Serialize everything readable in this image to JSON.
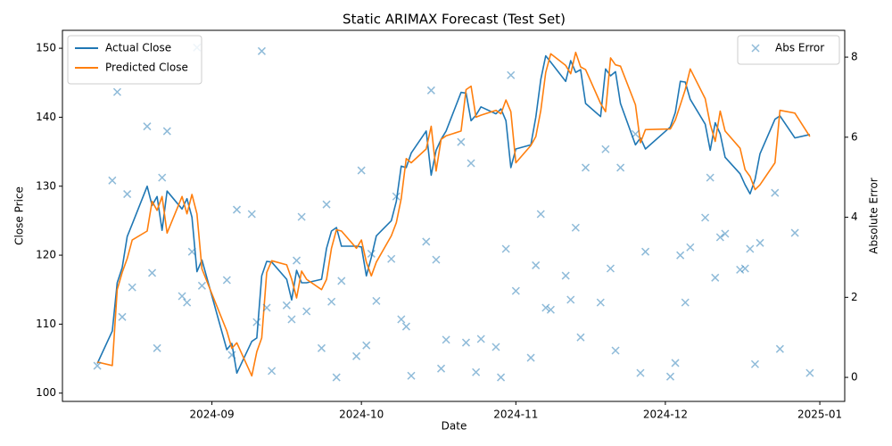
{
  "chart_data": {
    "type": "line",
    "title": "Static ARIMAX Forecast (Test Set)",
    "xlabel": "Date",
    "ylabel": "Close Price",
    "y2label": "Absolute Error",
    "x": [
      222,
      225,
      226,
      227,
      228,
      229,
      232,
      233,
      234,
      235,
      236,
      239,
      240,
      241,
      242,
      243,
      248,
      249,
      250,
      253,
      254,
      255,
      256,
      257,
      260,
      261,
      262,
      263,
      264,
      267,
      268,
      269,
      270,
      271,
      274,
      275,
      276,
      277,
      278,
      281,
      282,
      283,
      284,
      285,
      288,
      289,
      290,
      291,
      292,
      295,
      296,
      297,
      298,
      299,
      302,
      303,
      304,
      305,
      306,
      309,
      310,
      311,
      312,
      313,
      316,
      317,
      318,
      319,
      320,
      323,
      324,
      325,
      326,
      327,
      330,
      331,
      332,
      337,
      338,
      339,
      340,
      341,
      344,
      345,
      346,
      347,
      348,
      351,
      352,
      353,
      354,
      355,
      358,
      359,
      362,
      365
    ],
    "series": [
      {
        "name": "Actual Close",
        "color": "#1f77b4",
        "values": [
          104.3,
          109,
          116,
          118.2,
          122.7,
          124.5,
          130,
          127.2,
          128.5,
          123.6,
          129.3,
          126.7,
          128.2,
          125.5,
          117.6,
          119.3,
          106.3,
          107.2,
          102.9,
          107.5,
          108,
          117,
          119.1,
          119,
          116.5,
          113.5,
          117.8,
          116,
          116,
          116.5,
          121,
          123.5,
          124,
          121.3,
          121.3,
          121.2,
          117,
          119.7,
          122.8,
          125,
          127.8,
          132.9,
          132.7,
          134.8,
          138,
          131.6,
          135.2,
          136.8,
          138,
          143.6,
          143.5,
          139.5,
          140.3,
          141.5,
          140.5,
          141.2,
          139.5,
          132.7,
          135.4,
          136,
          140,
          145.5,
          148.9,
          148,
          145.2,
          148.2,
          146.5,
          146.9,
          142,
          140.1,
          147,
          146,
          146.6,
          142,
          136,
          137,
          135.4,
          138.6,
          140.7,
          145.2,
          145.1,
          142.6,
          139,
          135.2,
          139.2,
          137.6,
          134.2,
          131.8,
          130.2,
          128.9,
          131,
          134.7,
          139.7,
          140.2,
          137,
          137.5
        ]
      },
      {
        "name": "Predicted Close",
        "color": "#ff7f0e",
        "values": [
          104.5,
          104,
          115,
          117.5,
          119.5,
          122.2,
          123.5,
          127.8,
          126.5,
          128.5,
          123.2,
          128.5,
          126,
          128.8,
          126,
          118,
          109,
          106.5,
          107.3,
          102.5,
          106,
          108,
          117.5,
          119.2,
          118.6,
          116.5,
          113.8,
          117.7,
          116.5,
          115,
          116.5,
          121,
          123.7,
          123.5,
          121,
          122.2,
          119,
          117,
          119,
          122.8,
          124.7,
          128.2,
          134,
          133.4,
          135.4,
          138.7,
          132.2,
          136.8,
          137.3,
          138,
          144,
          144.5,
          140,
          140.3,
          141,
          140.5,
          142.5,
          140.8,
          133.4,
          135.9,
          137.2,
          141,
          146.5,
          149.2,
          147.5,
          146.3,
          149.4,
          147.3,
          146.9,
          142,
          140.8,
          148.6,
          147.6,
          147.4,
          141.8,
          136.3,
          138.2,
          138.3,
          139.6,
          141.8,
          144,
          147,
          142.7,
          139,
          136.5,
          140.9,
          138,
          135.5,
          132.4,
          131.4,
          129.5,
          130.2,
          133.4,
          141,
          140.6,
          137.2
        ]
      },
      {
        "name": "Abs Error",
        "type": "scatter",
        "marker": "x",
        "axis": "y2",
        "color": "#1f77b4",
        "opacity": 0.5,
        "values": [
          0.29,
          4.92,
          7.13,
          1.51,
          4.58,
          2.25,
          6.27,
          2.61,
          0.73,
          4.99,
          6.15,
          2.03,
          1.87,
          3.14,
          8.24,
          2.29,
          2.43,
          0.56,
          4.19,
          4.08,
          1.38,
          8.15,
          1.74,
          0.16,
          1.8,
          1.45,
          2.92,
          4.01,
          1.65,
          0.73,
          4.32,
          1.89,
          0,
          2.41,
          0.53,
          5.17,
          0.8,
          3.09,
          1.91,
          2.96,
          4.52,
          1.45,
          1.27,
          0.04,
          3.39,
          7.17,
          2.94,
          0.22,
          0.94,
          5.88,
          0.87,
          5.35,
          0.13,
          0.96,
          0.76,
          0,
          3.21,
          7.55,
          2.16,
          0.49,
          2.8,
          4.08,
          1.74,
          1.69,
          2.54,
          1.94,
          3.74,
          1,
          5.24,
          1.87,
          5.7,
          2.72,
          0.67,
          5.24,
          6.08,
          0.11,
          3.14,
          0.02,
          0.36,
          3.05,
          1.87,
          3.25,
          3.99,
          4.99,
          2.49,
          3.5,
          3.59,
          2.69,
          2.72,
          3.21,
          0.33,
          3.36,
          4.61,
          0.71,
          3.61,
          0.11
        ]
      }
    ],
    "xlim": [
      215,
      372
    ],
    "xticks": [
      {
        "value": 245,
        "label": "2024-09"
      },
      {
        "value": 275,
        "label": "2024-10"
      },
      {
        "value": 306,
        "label": "2024-11"
      },
      {
        "value": 336,
        "label": "2024-12"
      },
      {
        "value": 367,
        "label": "2025-01"
      }
    ],
    "ylim": [
      98.8,
      152.6
    ],
    "yticks": [
      100,
      110,
      120,
      130,
      140,
      150
    ],
    "y2lim": [
      -0.6,
      8.67
    ],
    "y2ticks": [
      0,
      2,
      4,
      6,
      8
    ],
    "grid": false,
    "legend": "upper left",
    "legend_y2": "upper right"
  }
}
